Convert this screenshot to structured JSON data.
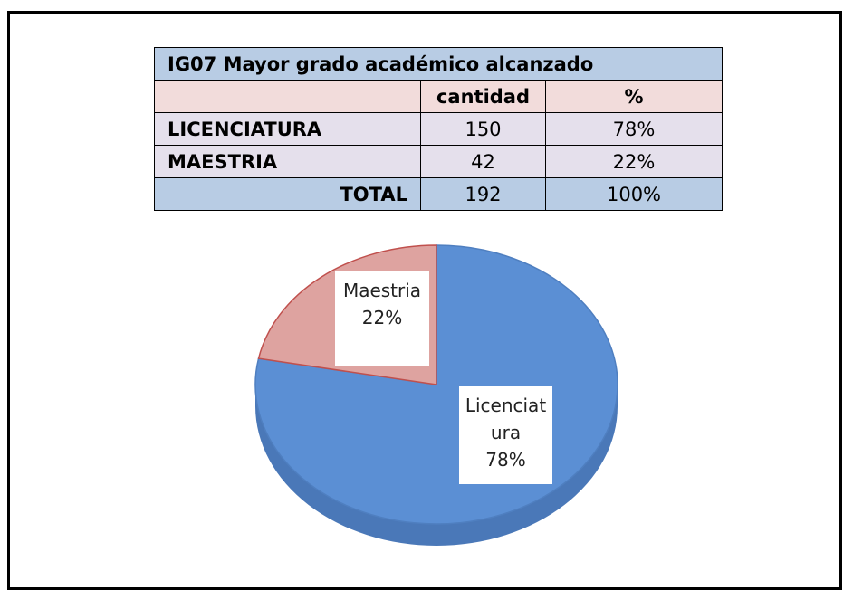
{
  "table": {
    "title": "IG07  Mayor grado académico alcanzado",
    "header": [
      "cantidad",
      "%"
    ],
    "rows": [
      [
        "LICENCIATURA",
        150,
        "78%"
      ],
      [
        "MAESTRIA",
        42,
        "22%"
      ],
      [
        "TOTAL",
        192,
        "100%"
      ]
    ]
  },
  "chart_data": {
    "type": "pie",
    "categories": [
      "Licenciatura",
      "Maestria"
    ],
    "values": [
      78,
      22
    ],
    "value_labels": [
      "78%",
      "22%"
    ],
    "colors": [
      "#5b8fd4",
      "#dea3a0"
    ],
    "edge_colors": [
      "#4f7fc0",
      "#c0504d"
    ]
  }
}
